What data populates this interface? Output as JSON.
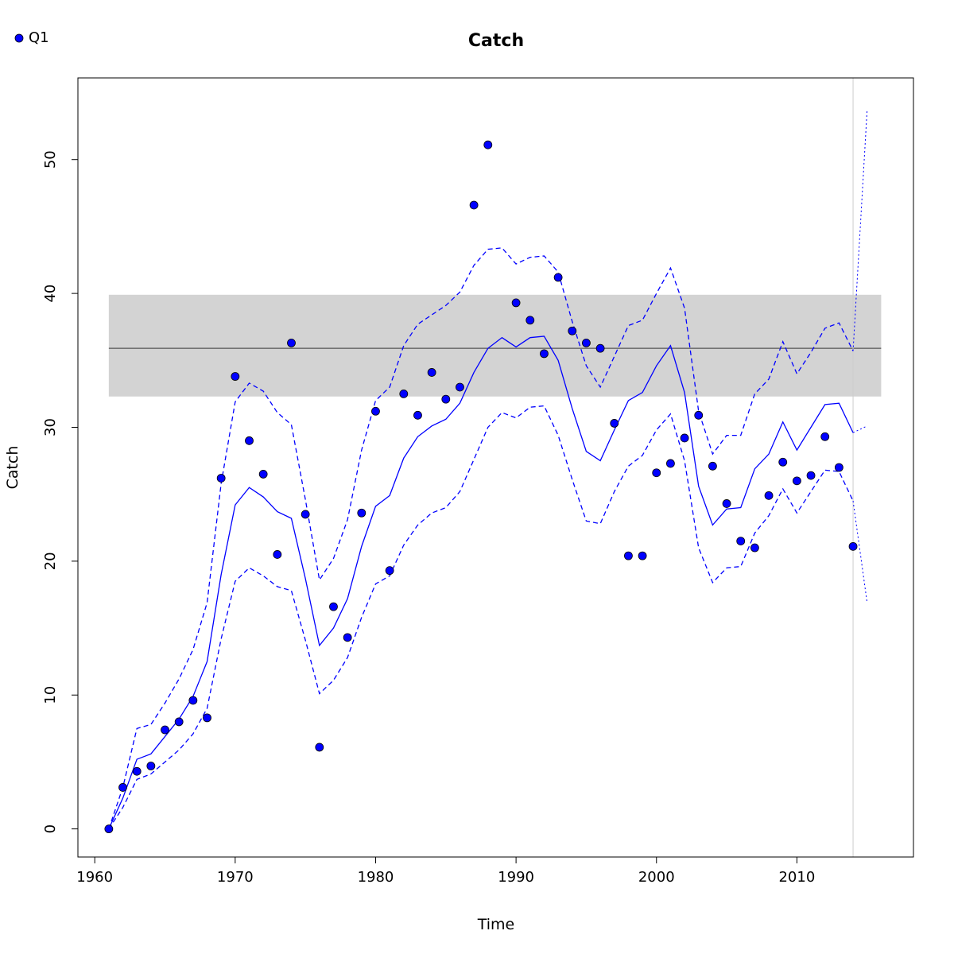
{
  "chart_data": {
    "type": "line",
    "title": "Catch",
    "xlabel": "Time",
    "ylabel": "Catch",
    "xlim": [
      1958.8,
      2018.3
    ],
    "ylim": [
      -2.1,
      56.1
    ],
    "x_ticks": [
      1960,
      1970,
      1980,
      1990,
      2000,
      2010
    ],
    "y_ticks": [
      0,
      10,
      20,
      30,
      40,
      50
    ],
    "legend": {
      "position": "top-left",
      "entries": [
        {
          "label": "Q1",
          "color": "#0000ff",
          "marker": "point"
        }
      ]
    },
    "reference": {
      "line": 35.9,
      "band": [
        32.3,
        39.9
      ],
      "x_range": [
        1961,
        2016
      ],
      "line_color": "#555555",
      "band_color": "#d3d3d3"
    },
    "vline": {
      "x": 2014,
      "color": "#cccccc"
    },
    "colors": {
      "series": "#0000ff",
      "point_stroke": "#000000"
    },
    "series": [
      {
        "name": "Q1",
        "kind": "points",
        "x": [
          1961,
          1962,
          1963,
          1964,
          1965,
          1966,
          1967,
          1968,
          1969,
          1970,
          1971,
          1972,
          1973,
          1974,
          1975,
          1976,
          1977,
          1978,
          1979,
          1980,
          1981,
          1982,
          1983,
          1984,
          1985,
          1986,
          1987,
          1988,
          1989,
          1990,
          1991,
          1992,
          1993,
          1994,
          1995,
          1996,
          1997,
          1998,
          1999,
          2000,
          2001,
          2002,
          2003,
          2004,
          2005,
          2006,
          2007,
          2008,
          2009,
          2010,
          2011,
          2012,
          2013,
          2014
        ],
        "y": [
          0.0,
          3.1,
          4.3,
          4.7,
          7.4,
          8.0,
          9.6,
          8.3,
          26.2,
          33.8,
          29.0,
          26.5,
          20.5,
          36.3,
          23.5,
          6.1,
          16.6,
          14.3,
          23.6,
          31.2,
          19.3,
          32.5,
          30.9,
          34.1,
          32.1,
          33.0,
          46.6,
          51.1,
          null,
          39.3,
          38.0,
          35.5,
          41.2,
          37.2,
          36.3,
          35.9,
          30.3,
          20.4,
          20.4,
          26.6,
          27.3,
          29.2,
          30.9,
          27.1,
          24.3,
          21.5,
          21.0,
          24.9,
          27.4,
          26.0,
          26.4,
          29.3,
          27.0,
          21.1
        ]
      },
      {
        "name": "",
        "kind": "line",
        "style": "solid",
        "x": [
          1961,
          1962,
          1963,
          1964,
          1965,
          1966,
          1967,
          1968,
          1969,
          1970,
          1971,
          1972,
          1973,
          1974,
          1975,
          1976,
          1977,
          1978,
          1979,
          1980,
          1981,
          1982,
          1983,
          1984,
          1985,
          1986,
          1987,
          1988,
          1989,
          1990,
          1991,
          1992,
          1993,
          1994,
          1995,
          1996,
          1997,
          1998,
          1999,
          2000,
          2001,
          2002,
          2003,
          2004,
          2005,
          2006,
          2007,
          2008,
          2009,
          2010,
          2011,
          2012,
          2013,
          2014
        ],
        "y": [
          0.0,
          2.3,
          5.2,
          5.6,
          6.9,
          8.2,
          9.9,
          12.5,
          19.0,
          24.2,
          25.5,
          24.8,
          23.7,
          23.2,
          18.7,
          13.7,
          15.0,
          17.2,
          21.1,
          24.1,
          24.9,
          27.7,
          29.3,
          30.1,
          30.6,
          31.8,
          34.1,
          35.9,
          36.7,
          36.0,
          36.7,
          36.8,
          35.0,
          31.4,
          28.2,
          27.5,
          29.8,
          32.0,
          32.6,
          34.6,
          36.1,
          32.6,
          25.6,
          22.7,
          23.9,
          24.0,
          26.9,
          28.0,
          30.4,
          28.3,
          30.0,
          31.7,
          31.8,
          29.6
        ]
      },
      {
        "name": "",
        "kind": "line",
        "style": "dashed",
        "x": [
          1961,
          1962,
          1963,
          1964,
          1965,
          1966,
          1967,
          1968,
          1969,
          1970,
          1971,
          1972,
          1973,
          1974,
          1975,
          1976,
          1977,
          1978,
          1979,
          1980,
          1981,
          1982,
          1983,
          1984,
          1985,
          1986,
          1987,
          1988,
          1989,
          1990,
          1991,
          1992,
          1993,
          1994,
          1995,
          1996,
          1997,
          1998,
          1999,
          2000,
          2001,
          2002,
          2003,
          2004,
          2005,
          2006,
          2007,
          2008,
          2009,
          2010,
          2011,
          2012,
          2013,
          2014
        ],
        "y": [
          0.0,
          3.1,
          7.5,
          7.8,
          9.4,
          11.2,
          13.4,
          16.9,
          25.8,
          31.9,
          33.3,
          32.7,
          31.1,
          30.2,
          24.6,
          18.6,
          20.2,
          23.1,
          28.3,
          32.0,
          33.0,
          36.1,
          37.7,
          38.4,
          39.1,
          40.1,
          42.1,
          43.3,
          43.4,
          42.2,
          42.7,
          42.8,
          41.6,
          37.9,
          34.6,
          33.0,
          35.3,
          37.6,
          38.0,
          40.0,
          41.9,
          38.9,
          31.2,
          28.0,
          29.4,
          29.4,
          32.5,
          33.6,
          36.4,
          34.0,
          35.6,
          37.4,
          37.8,
          35.7
        ]
      },
      {
        "name": "",
        "kind": "line",
        "style": "dashed",
        "x": [
          1961,
          1962,
          1963,
          1964,
          1965,
          1966,
          1967,
          1968,
          1969,
          1970,
          1971,
          1972,
          1973,
          1974,
          1975,
          1976,
          1977,
          1978,
          1979,
          1980,
          1981,
          1982,
          1983,
          1984,
          1985,
          1986,
          1987,
          1988,
          1989,
          1990,
          1991,
          1992,
          1993,
          1994,
          1995,
          1996,
          1997,
          1998,
          1999,
          2000,
          2001,
          2002,
          2003,
          2004,
          2005,
          2006,
          2007,
          2008,
          2009,
          2010,
          2011,
          2012,
          2013,
          2014
        ],
        "y": [
          0.0,
          1.6,
          3.7,
          4.1,
          5.0,
          5.9,
          7.1,
          9.0,
          14.2,
          18.5,
          19.5,
          18.9,
          18.1,
          17.8,
          14.1,
          10.1,
          11.1,
          12.8,
          15.8,
          18.3,
          18.9,
          21.2,
          22.7,
          23.6,
          24.0,
          25.2,
          27.6,
          30.0,
          31.1,
          30.7,
          31.5,
          31.6,
          29.4,
          26.1,
          23.0,
          22.8,
          25.2,
          27.1,
          27.9,
          29.8,
          31.0,
          27.5,
          21.0,
          18.4,
          19.5,
          19.6,
          22.1,
          23.4,
          25.4,
          23.6,
          25.2,
          26.8,
          26.7,
          24.5
        ]
      },
      {
        "name": "",
        "kind": "forecast",
        "style": "dotted",
        "x": [
          2014,
          2015
        ],
        "y": [
          29.6,
          30.1
        ]
      },
      {
        "name": "",
        "kind": "forecast",
        "style": "dotted",
        "x": [
          2014,
          2015
        ],
        "y": [
          35.7,
          53.7
        ]
      },
      {
        "name": "",
        "kind": "forecast",
        "style": "dotted",
        "x": [
          2014,
          2015
        ],
        "y": [
          24.5,
          16.9
        ]
      }
    ]
  }
}
